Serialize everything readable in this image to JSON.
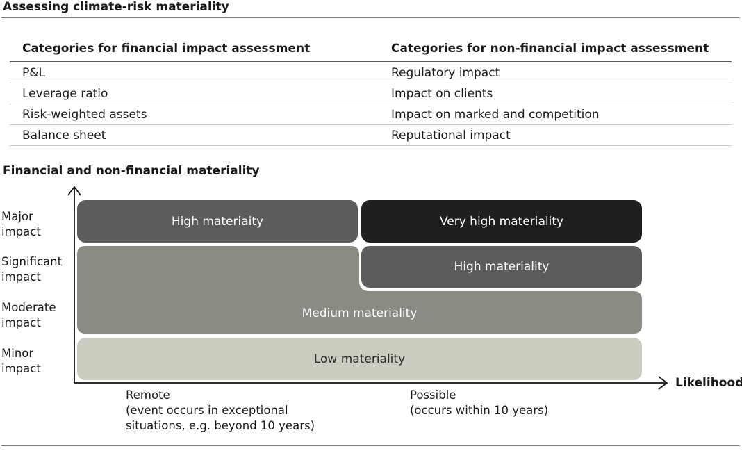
{
  "title": "Assessing climate-risk materiality",
  "table": {
    "headers": [
      "Categories for financial impact assessment",
      "Categories for non-financial impact assessment"
    ],
    "rows": [
      [
        "P&L",
        "Regulatory impact"
      ],
      [
        "Leverage ratio",
        "Impact on clients"
      ],
      [
        "Risk-weighted assets",
        "Impact on marked and competition"
      ],
      [
        "Balance sheet",
        "Reputational impact"
      ]
    ]
  },
  "matrix": {
    "title": "Financial and non-financial materiality",
    "y_labels": [
      [
        "Major",
        "impact"
      ],
      [
        "Significant",
        "impact"
      ],
      [
        "Moderate",
        "impact"
      ],
      [
        "Minor",
        "impact"
      ]
    ],
    "x_axis_title": "Likelihood",
    "x_labels": [
      [
        "Remote",
        "(event occurs in exceptional",
        "situations, e.g. beyond 10 years)"
      ],
      [
        "Possible",
        "(occurs within 10 years)"
      ]
    ],
    "cells": {
      "high_top": "High materiaity",
      "very_high": "Very high materiality",
      "high_right": "High materiality",
      "medium": "Medium materiality",
      "low": "Low materiality"
    },
    "colors": {
      "very_high": "#1f1f1f",
      "high": "#5b5d5c",
      "medium": "#8b8b83",
      "low": "#ccccc0",
      "low_text": "#2a2a2a"
    }
  }
}
